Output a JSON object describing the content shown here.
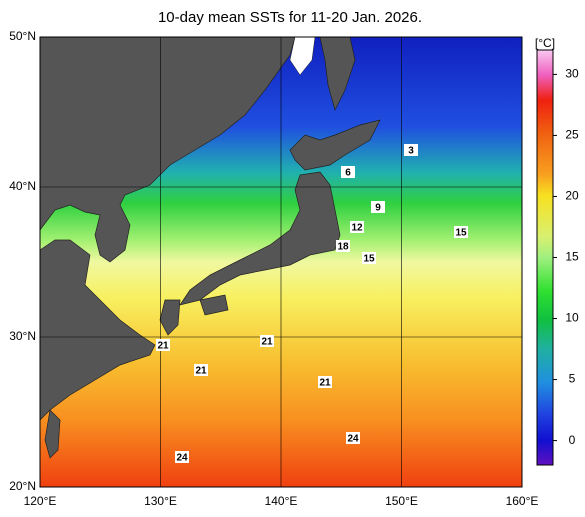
{
  "title": "10-day mean SSTs for 11-20 Jan. 2026.",
  "map": {
    "lonlim": [
      120,
      160
    ],
    "latlim": [
      20,
      50
    ],
    "lon_ticks": [
      {
        "value": 120,
        "label": "120°E"
      },
      {
        "value": 130,
        "label": "130°E"
      },
      {
        "value": 140,
        "label": "140°E"
      },
      {
        "value": 150,
        "label": "150°E"
      },
      {
        "value": 160,
        "label": "160°E"
      }
    ],
    "lat_ticks": [
      {
        "value": 20,
        "label": "20°N"
      },
      {
        "value": 30,
        "label": "30°N"
      },
      {
        "value": 40,
        "label": "40°N"
      },
      {
        "value": 50,
        "label": "50°N"
      }
    ],
    "contour_labels": [
      3,
      6,
      9,
      12,
      18,
      15,
      15,
      21,
      21,
      21,
      21,
      24,
      24
    ]
  },
  "colorbar": {
    "unit": "[°C]",
    "lim": [
      -2,
      32
    ],
    "ticks": [
      0,
      5,
      10,
      15,
      20,
      25,
      30
    ]
  }
}
